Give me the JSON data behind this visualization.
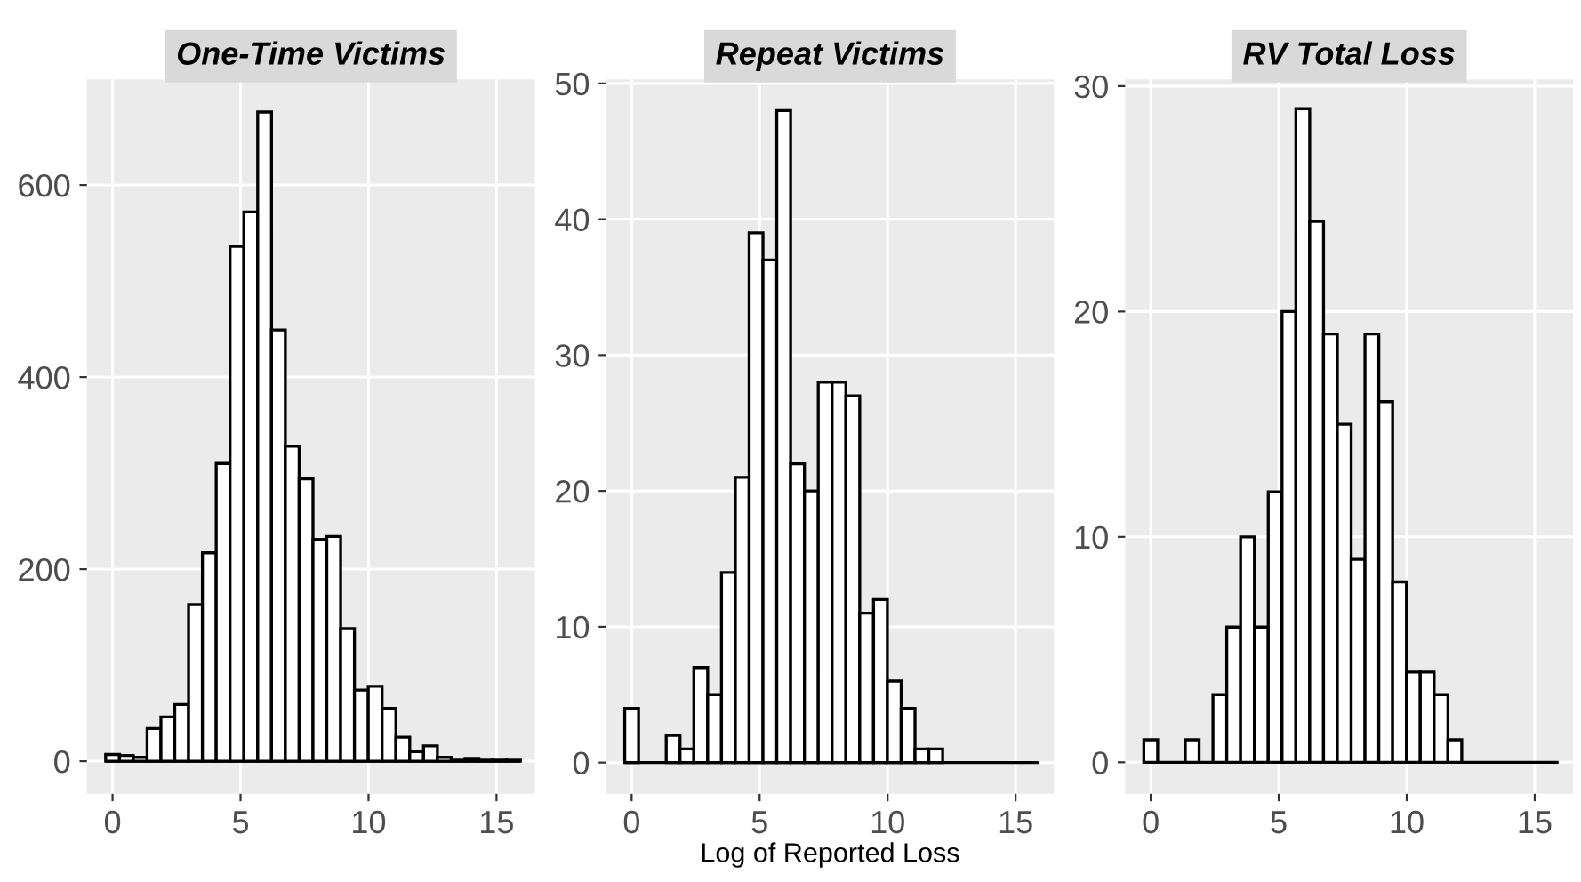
{
  "chart_data": [
    {
      "type": "histogram",
      "title": "One-Time Victims",
      "color": "#ffffff",
      "bins": [
        -0.27,
        0.27,
        0.81,
        1.35,
        1.89,
        2.43,
        2.97,
        3.51,
        4.05,
        4.59,
        5.13,
        5.67,
        6.21,
        6.75,
        7.29,
        7.83,
        8.37,
        8.91,
        9.45,
        9.99,
        10.53,
        11.07,
        11.61,
        12.15,
        12.69,
        13.23,
        13.77,
        14.31,
        14.85,
        15.39,
        15.93
      ],
      "values": [
        7,
        6,
        4,
        34,
        46,
        59,
        163,
        217,
        310,
        536,
        572,
        676,
        449,
        328,
        294,
        231,
        234,
        138,
        74,
        78,
        55,
        25,
        10,
        16,
        4,
        1,
        3,
        1,
        1,
        1
      ],
      "xlim": [
        -1.0,
        16.5
      ],
      "ylim": [
        -34,
        710
      ],
      "xticks": [
        0,
        5,
        10,
        15
      ],
      "yticks": [
        0,
        200,
        400,
        600
      ],
      "grid": true
    },
    {
      "type": "histogram",
      "title": "Repeat Victims",
      "xlabel": "Log of Reported Loss",
      "color": "#ffffff",
      "bins": [
        -0.27,
        0.27,
        0.81,
        1.35,
        1.89,
        2.43,
        2.97,
        3.51,
        4.05,
        4.59,
        5.13,
        5.67,
        6.21,
        6.75,
        7.29,
        7.83,
        8.37,
        8.91,
        9.45,
        9.99,
        10.53,
        11.07,
        11.61,
        12.15,
        12.69,
        13.23,
        13.77,
        14.31,
        14.85,
        15.39,
        15.93
      ],
      "values": [
        4,
        0,
        0,
        2,
        1,
        7,
        5,
        14,
        21,
        39,
        37,
        48,
        22,
        20,
        28,
        28,
        27,
        11,
        12,
        6,
        4,
        1,
        1,
        0,
        0,
        0,
        0,
        0,
        0,
        0
      ],
      "xlim": [
        -1.0,
        16.5
      ],
      "ylim": [
        -2.3,
        50.3
      ],
      "xticks": [
        0,
        5,
        10,
        15
      ],
      "yticks": [
        0,
        10,
        20,
        30,
        40,
        50
      ],
      "grid": true
    },
    {
      "type": "histogram",
      "title": "RV Total Loss",
      "color": "#ffffff",
      "bins": [
        -0.27,
        0.27,
        0.81,
        1.35,
        1.89,
        2.43,
        2.97,
        3.51,
        4.05,
        4.59,
        5.13,
        5.67,
        6.21,
        6.75,
        7.29,
        7.83,
        8.37,
        8.91,
        9.45,
        9.99,
        10.53,
        11.07,
        11.61,
        12.15,
        12.69,
        13.23,
        13.77,
        14.31,
        14.85,
        15.39,
        15.93
      ],
      "values": [
        1,
        0,
        0,
        1,
        0,
        3,
        6,
        10,
        6,
        12,
        20,
        29,
        24,
        19,
        15,
        9,
        19,
        16,
        8,
        4,
        4,
        3,
        1,
        0,
        0,
        0,
        0,
        0,
        0,
        0
      ],
      "xlim": [
        -1.0,
        16.5
      ],
      "ylim": [
        -1.4,
        30.3
      ],
      "xticks": [
        0,
        5,
        10,
        15
      ],
      "yticks": [
        0,
        10,
        20,
        30
      ],
      "grid": true
    }
  ]
}
